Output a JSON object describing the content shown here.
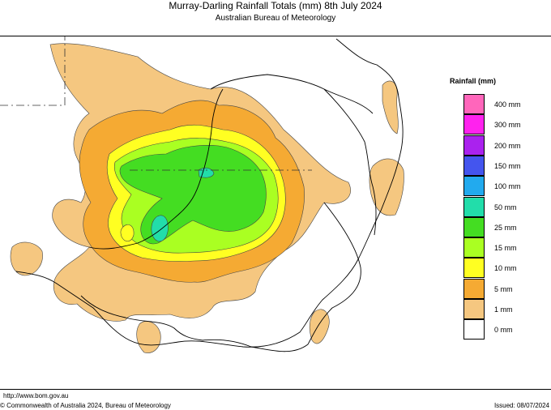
{
  "header": {
    "title": "Murray-Darling Rainfall Totals (mm)     8th July 2024",
    "subtitle": "Australian Bureau of Meteorology"
  },
  "legend": {
    "title": "Rainfall (mm)",
    "items": [
      {
        "label": "400 mm",
        "color": "#ff66bb"
      },
      {
        "label": "300 mm",
        "color": "#ff22ee"
      },
      {
        "label": "200 mm",
        "color": "#aa22ee"
      },
      {
        "label": "150 mm",
        "color": "#4455ee"
      },
      {
        "label": "100 mm",
        "color": "#22aaee"
      },
      {
        "label": "50 mm",
        "color": "#22ddaa"
      },
      {
        "label": "25 mm",
        "color": "#44dd22"
      },
      {
        "label": "15 mm",
        "color": "#aaff22"
      },
      {
        "label": "10 mm",
        "color": "#ffff22"
      },
      {
        "label": "5 mm",
        "color": "#f5aa33"
      },
      {
        "label": "1 mm",
        "color": "#f5c780"
      },
      {
        "label": "0 mm",
        "color": "#ffffff"
      }
    ]
  },
  "footer": {
    "url": "http://www.bom.gov.au",
    "copyright": "© Commonwealth of Australia 2024, Bureau of Meteorology",
    "issued": "Issued: 08/07/2024"
  }
}
